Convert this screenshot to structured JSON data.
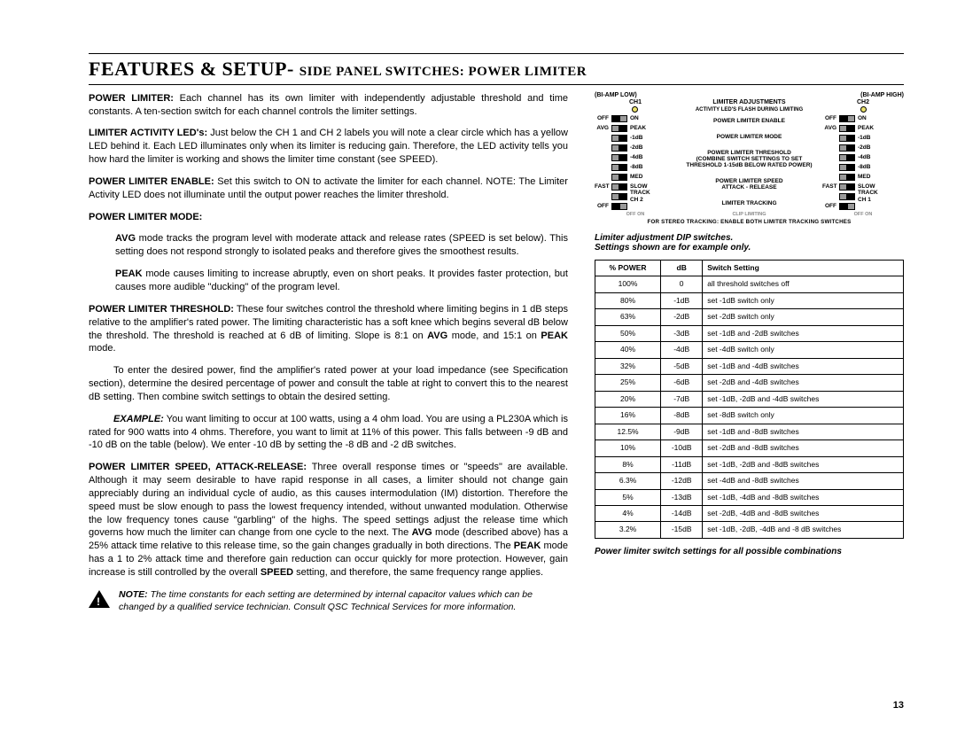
{
  "header": {
    "main": "FEATURES & SETUP- ",
    "sub": "SIDE PANEL SWITCHES: POWER LIMITER"
  },
  "paras": {
    "p1_label": "POWER LIMITER:",
    "p1": " Each channel has its own limiter with independently adjustable threshold and time constants. A ten-section switch for each channel controls the limiter settings.",
    "p2_label": "LIMITER ACTIVITY LED's:",
    "p2": " Just below the CH 1 and CH 2 labels you will note a clear circle which has a yellow LED behind it. Each LED illuminates only when its limiter is reducing gain. Therefore, the LED activity tells you how hard the limiter is working and shows the limiter time constant (see SPEED).",
    "p3_label": "POWER LIMITER ENABLE:",
    "p3": " Set this switch to ON to activate the limiter for each channel. NOTE: The Limiter Activity LED does not illuminate until the output power reaches the limiter threshold.",
    "mode_hdr": "POWER LIMITER MODE:",
    "avg_label": "AVG",
    "avg_txt": " mode tracks the program level with moderate attack and release rates (SPEED is set below). This setting does not respond strongly to isolated peaks and therefore gives the smoothest results.",
    "peak_label": "PEAK",
    "peak_txt": " mode causes limiting to increase abruptly, even on short peaks. It provides faster protection, but causes more audible \"ducking\" of the program level.",
    "thr_label": "POWER LIMITER THRESHOLD:",
    "thr1": " These four switches control the threshold where limiting begins in 1 dB steps relative to the amplifier's rated power. The limiting characteristic has a soft knee which begins several dB below the threshold. The threshold is reached at 6 dB of limiting. Slope is 8:1 on ",
    "thr2": " mode, and 15:1 on ",
    "thr3": " mode.",
    "thr4": "To enter the desired power, find the amplifier's rated power at your load impedance (see Specification section), determine the desired percentage of power and consult the table at right to convert this to the nearest dB setting. Then combine switch settings to obtain the desired setting.",
    "ex_label": "EXAMPLE:",
    "ex": " You want limiting to occur at 100 watts, using a 4 ohm load. You are using a PL230A which is rated for 900 watts into 4 ohms. Therefore, you want to limit at 11% of this power. This falls between -9 dB and -10 dB on the table (below). We enter -10 dB by setting the -8 dB and -2 dB switches.",
    "spd_label": "POWER LIMITER SPEED, ATTACK-RELEASE:",
    "spd1": " Three overall response times or \"speeds\" are available. Although it may seem desirable to have rapid response in all cases, a limiter should not change gain appreciably during an individual cycle of audio, as this causes intermodulation (IM) distortion. Therefore the speed must be slow enough to pass the lowest frequency intended, without unwanted modulation. Otherwise the low frequency tones cause \"garbling\" of the highs. The speed settings adjust the release time which governs how much the limiter can change from one cycle to the next. The ",
    "spd2": " mode (described above) has a 25% attack time relative to this release time, so the gain changes gradually in both directions. The ",
    "spd3": " mode has a 1 to 2% attack time and therefore gain reduction can occur quickly for more protection. However, gain increase is still controlled by the overall ",
    "spd4": " setting, and therefore, the same frequency range applies.",
    "speed_w": "SPEED",
    "note_label": "NOTE:",
    "note": " The time constants for each setting are determined by internal capacitor values which can be changed by a qualified service technician. Consult QSC Technical Services for more information."
  },
  "dip": {
    "bi_low": "(BI-AMP LOW)",
    "bi_high": "(BI-AMP HIGH)",
    "ch1": "CH1",
    "ch2": "CH2",
    "adj": "LIMITER ADJUSTMENTS",
    "flash": "ACTIVITY LED'S FLASH DURING LIMITING",
    "rows_left": [
      "OFF",
      "AVG",
      "",
      "",
      "",
      "",
      "",
      "FAST",
      "",
      "OFF"
    ],
    "rows_right": [
      "ON",
      "PEAK",
      "-1dB",
      "-2dB",
      "-4dB",
      "-8dB",
      "MED",
      "SLOW",
      "TRACK CH 2",
      ""
    ],
    "rows2_left": [
      "OFF",
      "AVG",
      "",
      "",
      "",
      "",
      "",
      "FAST",
      "",
      "OFF"
    ],
    "rows2_right": [
      "ON",
      "PEAK",
      "-1dB",
      "-2dB",
      "-4dB",
      "-8dB",
      "MED",
      "SLOW",
      "TRACK CH 1",
      ""
    ],
    "sw1": [
      "on",
      "off",
      "off",
      "off",
      "off",
      "off",
      "off",
      "off",
      "off",
      "on"
    ],
    "sw2": [
      "on",
      "off",
      "off",
      "off",
      "off",
      "off",
      "off",
      "off",
      "off",
      "on"
    ],
    "center": [
      "POWER LIMITER ENABLE",
      "POWER LIMITER MODE",
      "POWER LIMITER THRESHOLD\n(COMBINE SWITCH SETTINGS TO SET\nTHRESHOLD 1-15dB BELOW RATED POWER)",
      "POWER LIMITER SPEED\nATTACK - RELEASE",
      "LIMITER TRACKING"
    ],
    "bottom_l": "OFF          ON",
    "bottom_c": "CLIP LIMITING",
    "bottom_r": "OFF          ON",
    "stereo": "FOR STEREO TRACKING: ENABLE BOTH LIMITER TRACKING SWITCHES",
    "caption1": "Limiter adjustment DIP switches.",
    "caption2": "Settings shown are for example only."
  },
  "table": {
    "headers": [
      "% POWER",
      "dB",
      "Switch Setting"
    ],
    "rows": [
      [
        "100%",
        "0",
        "all threshold switches off"
      ],
      [
        "80%",
        "-1dB",
        "set -1dB switch only"
      ],
      [
        "63%",
        "-2dB",
        "set -2dB switch only"
      ],
      [
        "50%",
        "-3dB",
        "set -1dB and -2dB switches"
      ],
      [
        "40%",
        "-4dB",
        "set -4dB switch only"
      ],
      [
        "32%",
        "-5dB",
        "set -1dB and -4dB switches"
      ],
      [
        "25%",
        "-6dB",
        "set -2dB and -4dB switches"
      ],
      [
        "20%",
        "-7dB",
        "set -1dB, -2dB and -4dB switches"
      ],
      [
        "16%",
        "-8dB",
        "set -8dB switch only"
      ],
      [
        "12.5%",
        "-9dB",
        "set -1dB and -8dB switches"
      ],
      [
        "10%",
        "-10dB",
        "set -2dB and -8dB switches"
      ],
      [
        "8%",
        "-11dB",
        "set -1dB, -2dB and -8dB switches"
      ],
      [
        "6.3%",
        "-12dB",
        "set -4dB and -8dB switches"
      ],
      [
        "5%",
        "-13dB",
        "set -1dB, -4dB and -8dB switches"
      ],
      [
        "4%",
        "-14dB",
        "set -2dB, -4dB and -8dB switches"
      ],
      [
        "3.2%",
        "-15dB",
        "set -1dB, -2dB, -4dB and -8 dB switches"
      ]
    ],
    "caption": "Power limiter switch settings for all possible combinations"
  },
  "page": "13"
}
